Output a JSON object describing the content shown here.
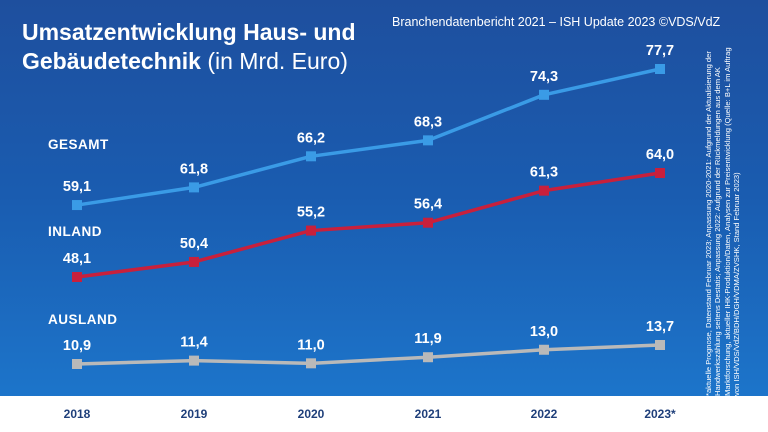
{
  "header": {
    "title_bold_1": "Umsatzentwicklung Haus- und",
    "title_bold_2": "Gebäudetechnik",
    "title_normal": " (in Mrd. Euro)",
    "source": "Branchendatenbericht 2021 – ISH Update 2023 ©VDS/VdZ"
  },
  "footnote": "*aktuelle Prognose, Datenstand Februar 2023; Anpassung 2020-2021: Aufgrund der Aktualisierung der Handwerkszählung seitens Destatis; Anpassung 2022: Aufgrund der Rückmeldungen aus dem AK Marktforschung, aktueller IHK-Produktion/Daten, Analysen zur Preisentwicklung (Quelle: B+L im Auftrag von ISH/VDS/VdZ/BDH/DGH/VDMA/ZVSHK, Stand Februar 2023)",
  "chart_data": {
    "type": "line",
    "x": [
      "2018",
      "2019",
      "2020",
      "2021",
      "2022",
      "2023*"
    ],
    "series": [
      {
        "name": "GESAMT",
        "values": [
          59.1,
          61.8,
          66.2,
          68.3,
          74.3,
          77.7
        ],
        "labels": [
          "59,1",
          "61,8",
          "66,2",
          "68,3",
          "74,3",
          "77,7"
        ],
        "color": "#3a9be6"
      },
      {
        "name": "INLAND",
        "values": [
          48.1,
          50.4,
          55.2,
          56.4,
          61.3,
          64.0
        ],
        "labels": [
          "48,1",
          "50,4",
          "55,2",
          "56,4",
          "61,3",
          "64,0"
        ],
        "color": "#c8203c"
      },
      {
        "name": "AUSLAND",
        "values": [
          10.9,
          11.4,
          11.0,
          11.9,
          13.0,
          13.7
        ],
        "labels": [
          "10,9",
          "11,4",
          "11,0",
          "11,9",
          "13,0",
          "13,7"
        ],
        "color": "#b9b9b9"
      }
    ],
    "grid": false,
    "legend": "inline labels at left"
  },
  "colors": {
    "background_top": "#1e4f9e",
    "background_bottom": "#1d79cf",
    "axis_text": "#1f3f7a"
  }
}
